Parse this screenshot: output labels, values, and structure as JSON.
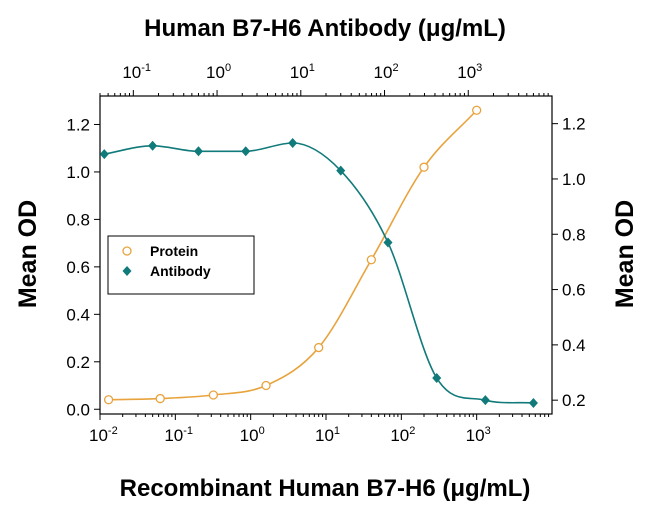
{
  "chart_data": {
    "type": "scatter",
    "title": "Human B7-H6 Antibody (μg/mL)",
    "xlabel": "Recombinant Human B7-H6 (μg/mL)",
    "ylabel_left": "Mean OD",
    "ylabel_right": "Mean OD",
    "x_scale": "log",
    "x_bottom_lim": [
      0.01,
      10000
    ],
    "x_bottom_ticks": [
      "10",
      "10",
      "10",
      "10",
      "10",
      "10"
    ],
    "x_bottom_exponents": [
      "-2",
      "-1",
      "0",
      "1",
      "2",
      "3"
    ],
    "x_top_lim": [
      0.04,
      10000
    ],
    "x_top_ticks": [
      "10",
      "10",
      "10",
      "10",
      "10"
    ],
    "x_top_exponents": [
      "-1",
      "0",
      "1",
      "2",
      "3"
    ],
    "y_left_lim": [
      -0.02,
      1.32
    ],
    "y_left_ticks": [
      "0.0",
      "0.2",
      "0.4",
      "0.6",
      "0.8",
      "1.0",
      "1.2"
    ],
    "y_right_lim": [
      0.15,
      1.3
    ],
    "y_right_ticks": [
      "0.2",
      "0.4",
      "0.6",
      "0.8",
      "1.0",
      "1.2"
    ],
    "grid": false,
    "legend_position": "center-left",
    "series": [
      {
        "name": "Protein",
        "axes": "bottom-left",
        "color": "#E8A33D",
        "marker": "open-circle",
        "x": [
          0.013,
          0.063,
          0.32,
          1.6,
          8,
          40,
          200,
          1000
        ],
        "y": [
          0.04,
          0.045,
          0.06,
          0.1,
          0.26,
          0.63,
          1.02,
          1.26
        ]
      },
      {
        "name": "Antibody",
        "axes": "top-right",
        "color": "#117A7A",
        "marker": "filled-diamond",
        "x": [
          0.045,
          0.17,
          0.6,
          2.2,
          8,
          30,
          110,
          420,
          1600,
          6000
        ],
        "y": [
          1.09,
          1.12,
          1.1,
          1.1,
          1.13,
          1.03,
          0.77,
          0.28,
          0.2,
          0.19
        ]
      }
    ]
  }
}
